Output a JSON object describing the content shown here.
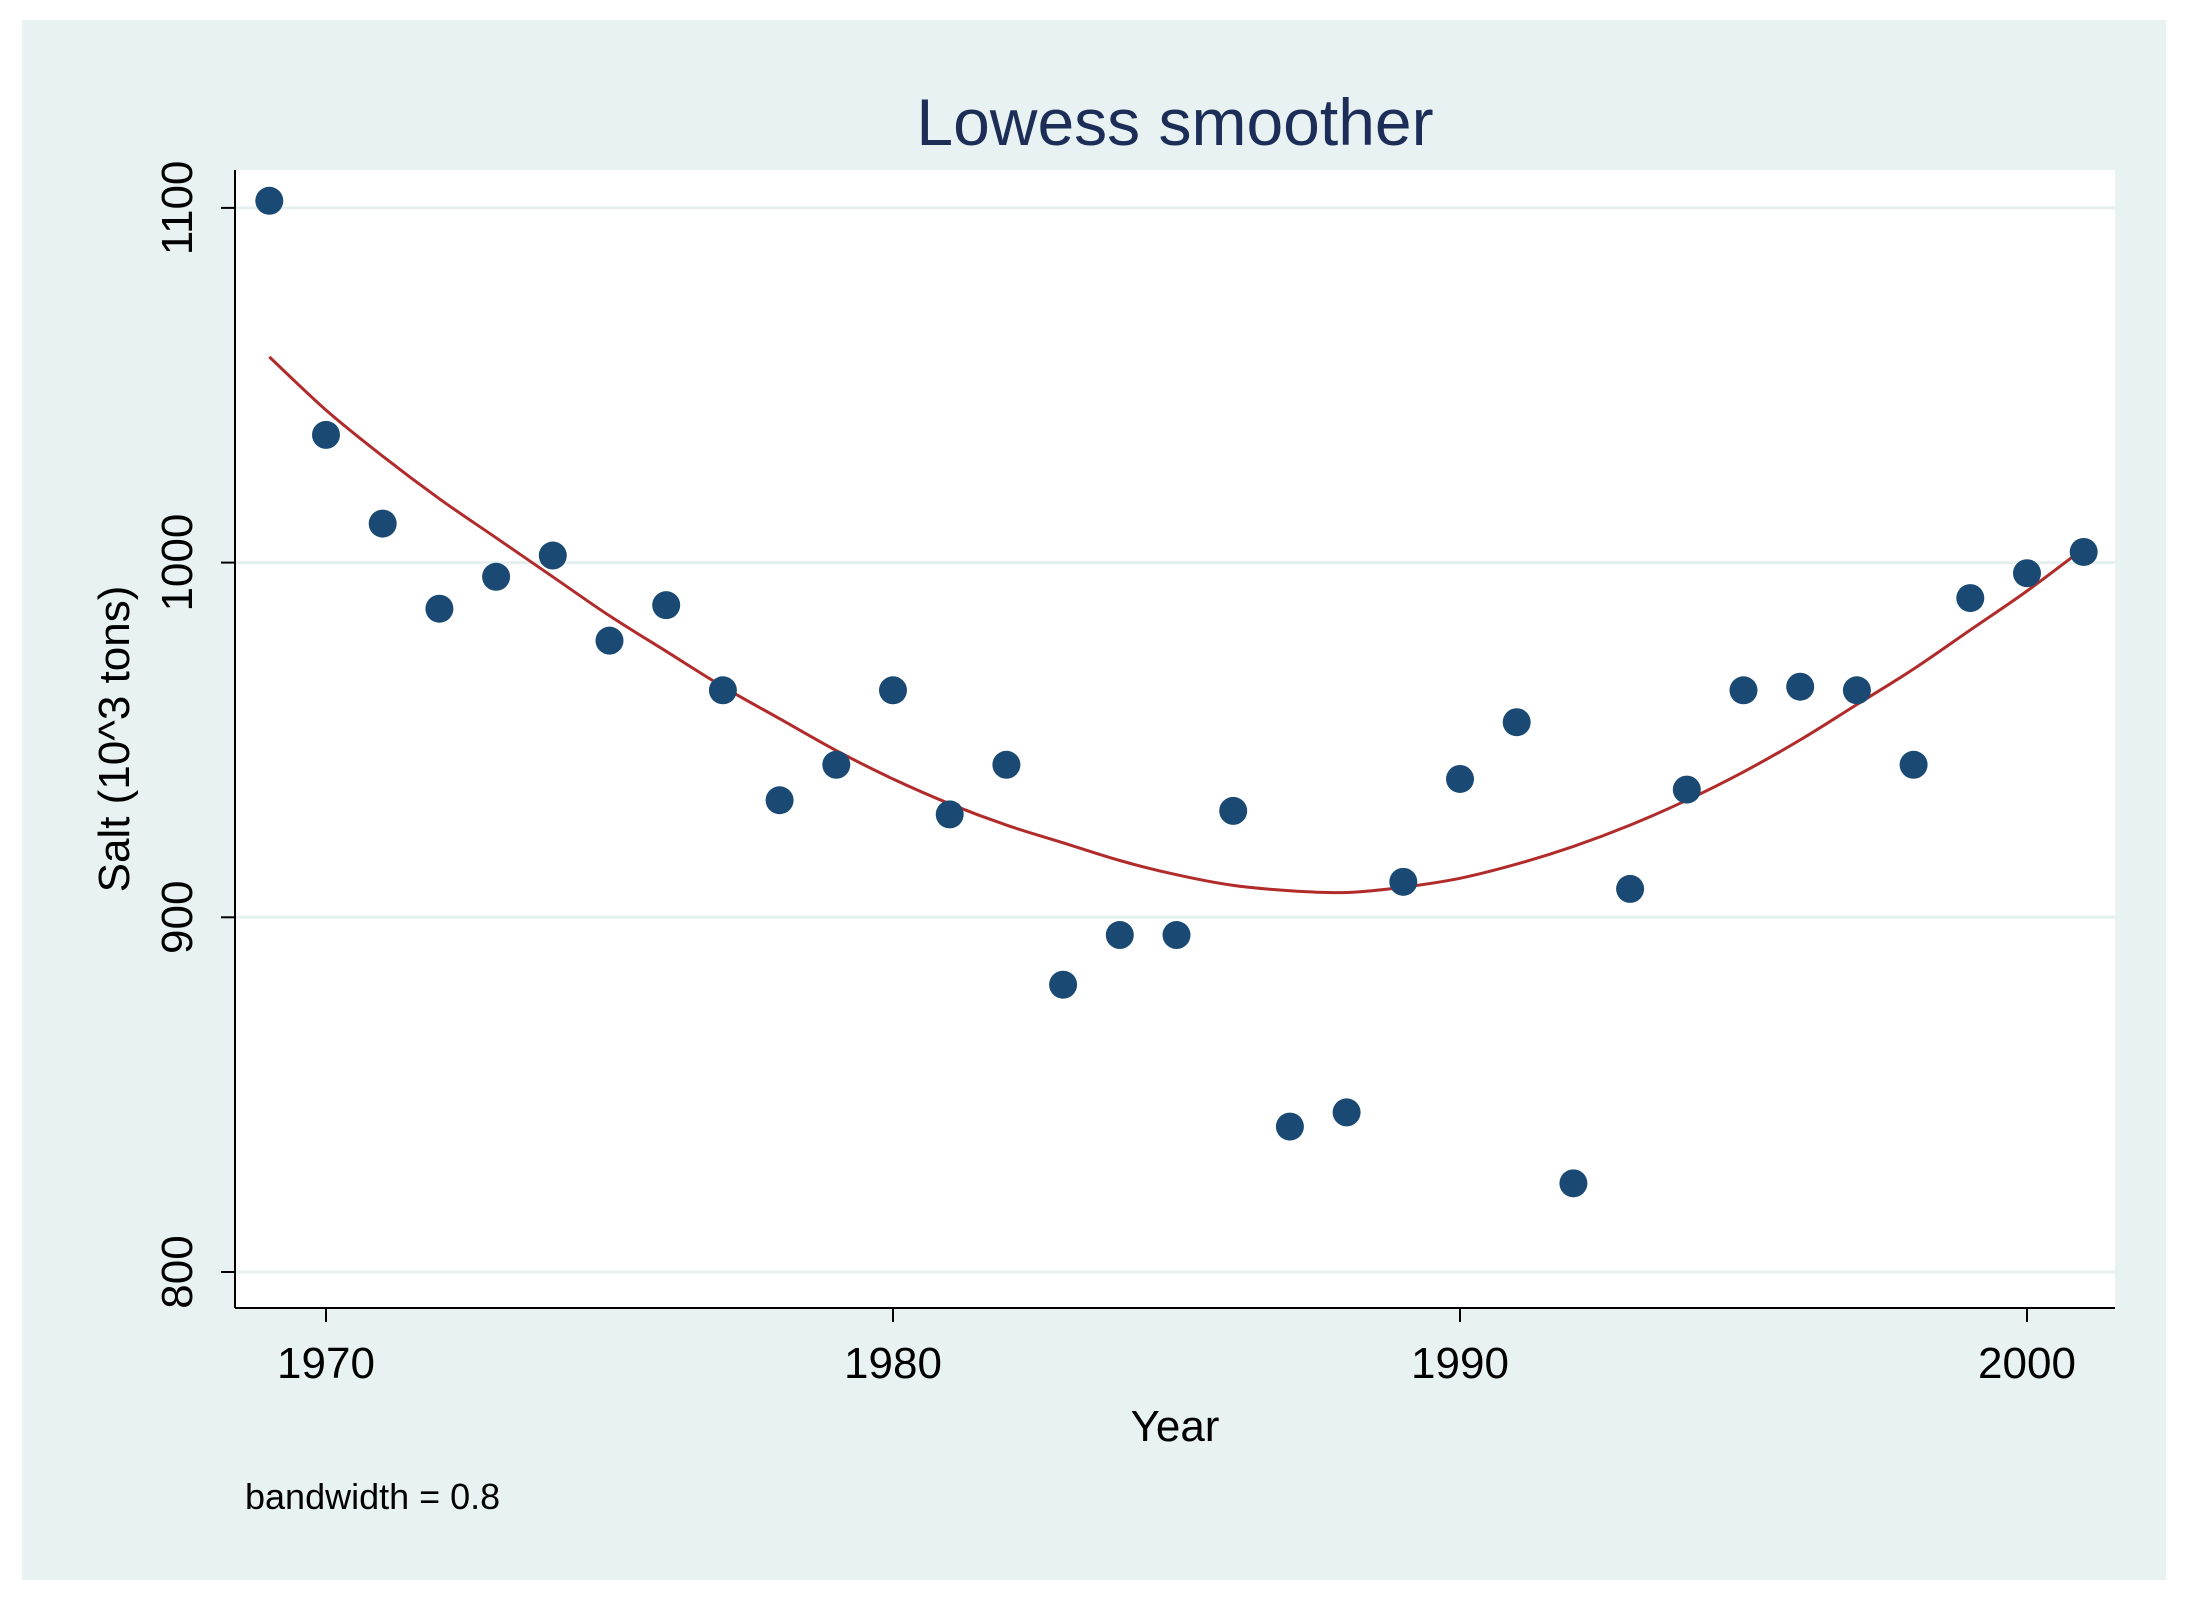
{
  "chart_data": {
    "type": "scatter",
    "title": "Lowess smoother",
    "xlabel": "Year",
    "ylabel": "Salt (10^3 tons)",
    "note": "bandwidth = 0.8",
    "xlim": [
      1969,
      2001
    ],
    "ylim": [
      800,
      1100
    ],
    "x_ticks": [
      {
        "value": 1970,
        "label": "1970"
      },
      {
        "value": 1980,
        "label": "1980"
      },
      {
        "value": 1990,
        "label": "1990"
      },
      {
        "value": 2000,
        "label": "2000"
      }
    ],
    "y_ticks": [
      {
        "value": 800,
        "label": "800"
      },
      {
        "value": 900,
        "label": "900"
      },
      {
        "value": 1000,
        "label": "1000"
      },
      {
        "value": 1100,
        "label": "1100"
      }
    ],
    "grid": "horizontal",
    "series": [
      {
        "name": "Salt",
        "kind": "scatter",
        "color": "#1a4a73",
        "points": [
          {
            "x": 1969,
            "y": 1102
          },
          {
            "x": 1970,
            "y": 1036
          },
          {
            "x": 1971,
            "y": 1011
          },
          {
            "x": 1972,
            "y": 987
          },
          {
            "x": 1973,
            "y": 996
          },
          {
            "x": 1974,
            "y": 1002
          },
          {
            "x": 1975,
            "y": 978
          },
          {
            "x": 1976,
            "y": 988
          },
          {
            "x": 1977,
            "y": 964
          },
          {
            "x": 1978,
            "y": 933
          },
          {
            "x": 1979,
            "y": 943
          },
          {
            "x": 1980,
            "y": 964
          },
          {
            "x": 1981,
            "y": 929
          },
          {
            "x": 1982,
            "y": 943
          },
          {
            "x": 1983,
            "y": 881
          },
          {
            "x": 1984,
            "y": 895
          },
          {
            "x": 1985,
            "y": 895
          },
          {
            "x": 1986,
            "y": 930
          },
          {
            "x": 1987,
            "y": 841
          },
          {
            "x": 1988,
            "y": 845
          },
          {
            "x": 1989,
            "y": 910
          },
          {
            "x": 1990,
            "y": 939
          },
          {
            "x": 1991,
            "y": 955
          },
          {
            "x": 1992,
            "y": 825
          },
          {
            "x": 1993,
            "y": 908
          },
          {
            "x": 1994,
            "y": 936
          },
          {
            "x": 1995,
            "y": 964
          },
          {
            "x": 1996,
            "y": 965
          },
          {
            "x": 1997,
            "y": 964
          },
          {
            "x": 1998,
            "y": 943
          },
          {
            "x": 1999,
            "y": 990
          },
          {
            "x": 2000,
            "y": 997
          },
          {
            "x": 2001,
            "y": 1003
          }
        ]
      },
      {
        "name": "Lowess smoother",
        "kind": "line",
        "color": "#b22b2b",
        "points": [
          {
            "x": 1969,
            "y": 1058
          },
          {
            "x": 1970,
            "y": 1043
          },
          {
            "x": 1971,
            "y": 1030
          },
          {
            "x": 1972,
            "y": 1018
          },
          {
            "x": 1973,
            "y": 1007
          },
          {
            "x": 1974,
            "y": 996
          },
          {
            "x": 1975,
            "y": 985
          },
          {
            "x": 1976,
            "y": 975
          },
          {
            "x": 1977,
            "y": 965
          },
          {
            "x": 1978,
            "y": 956
          },
          {
            "x": 1979,
            "y": 947
          },
          {
            "x": 1980,
            "y": 939
          },
          {
            "x": 1981,
            "y": 932
          },
          {
            "x": 1982,
            "y": 926
          },
          {
            "x": 1983,
            "y": 921
          },
          {
            "x": 1984,
            "y": 916
          },
          {
            "x": 1985,
            "y": 912
          },
          {
            "x": 1986,
            "y": 909
          },
          {
            "x": 1987,
            "y": 907.5
          },
          {
            "x": 1988,
            "y": 907
          },
          {
            "x": 1989,
            "y": 908.5
          },
          {
            "x": 1990,
            "y": 911
          },
          {
            "x": 1991,
            "y": 915
          },
          {
            "x": 1992,
            "y": 920
          },
          {
            "x": 1993,
            "y": 926
          },
          {
            "x": 1994,
            "y": 933
          },
          {
            "x": 1995,
            "y": 941
          },
          {
            "x": 1996,
            "y": 950
          },
          {
            "x": 1997,
            "y": 960
          },
          {
            "x": 1998,
            "y": 970
          },
          {
            "x": 1999,
            "y": 981
          },
          {
            "x": 2000,
            "y": 992
          },
          {
            "x": 2001,
            "y": 1004
          }
        ]
      }
    ]
  }
}
